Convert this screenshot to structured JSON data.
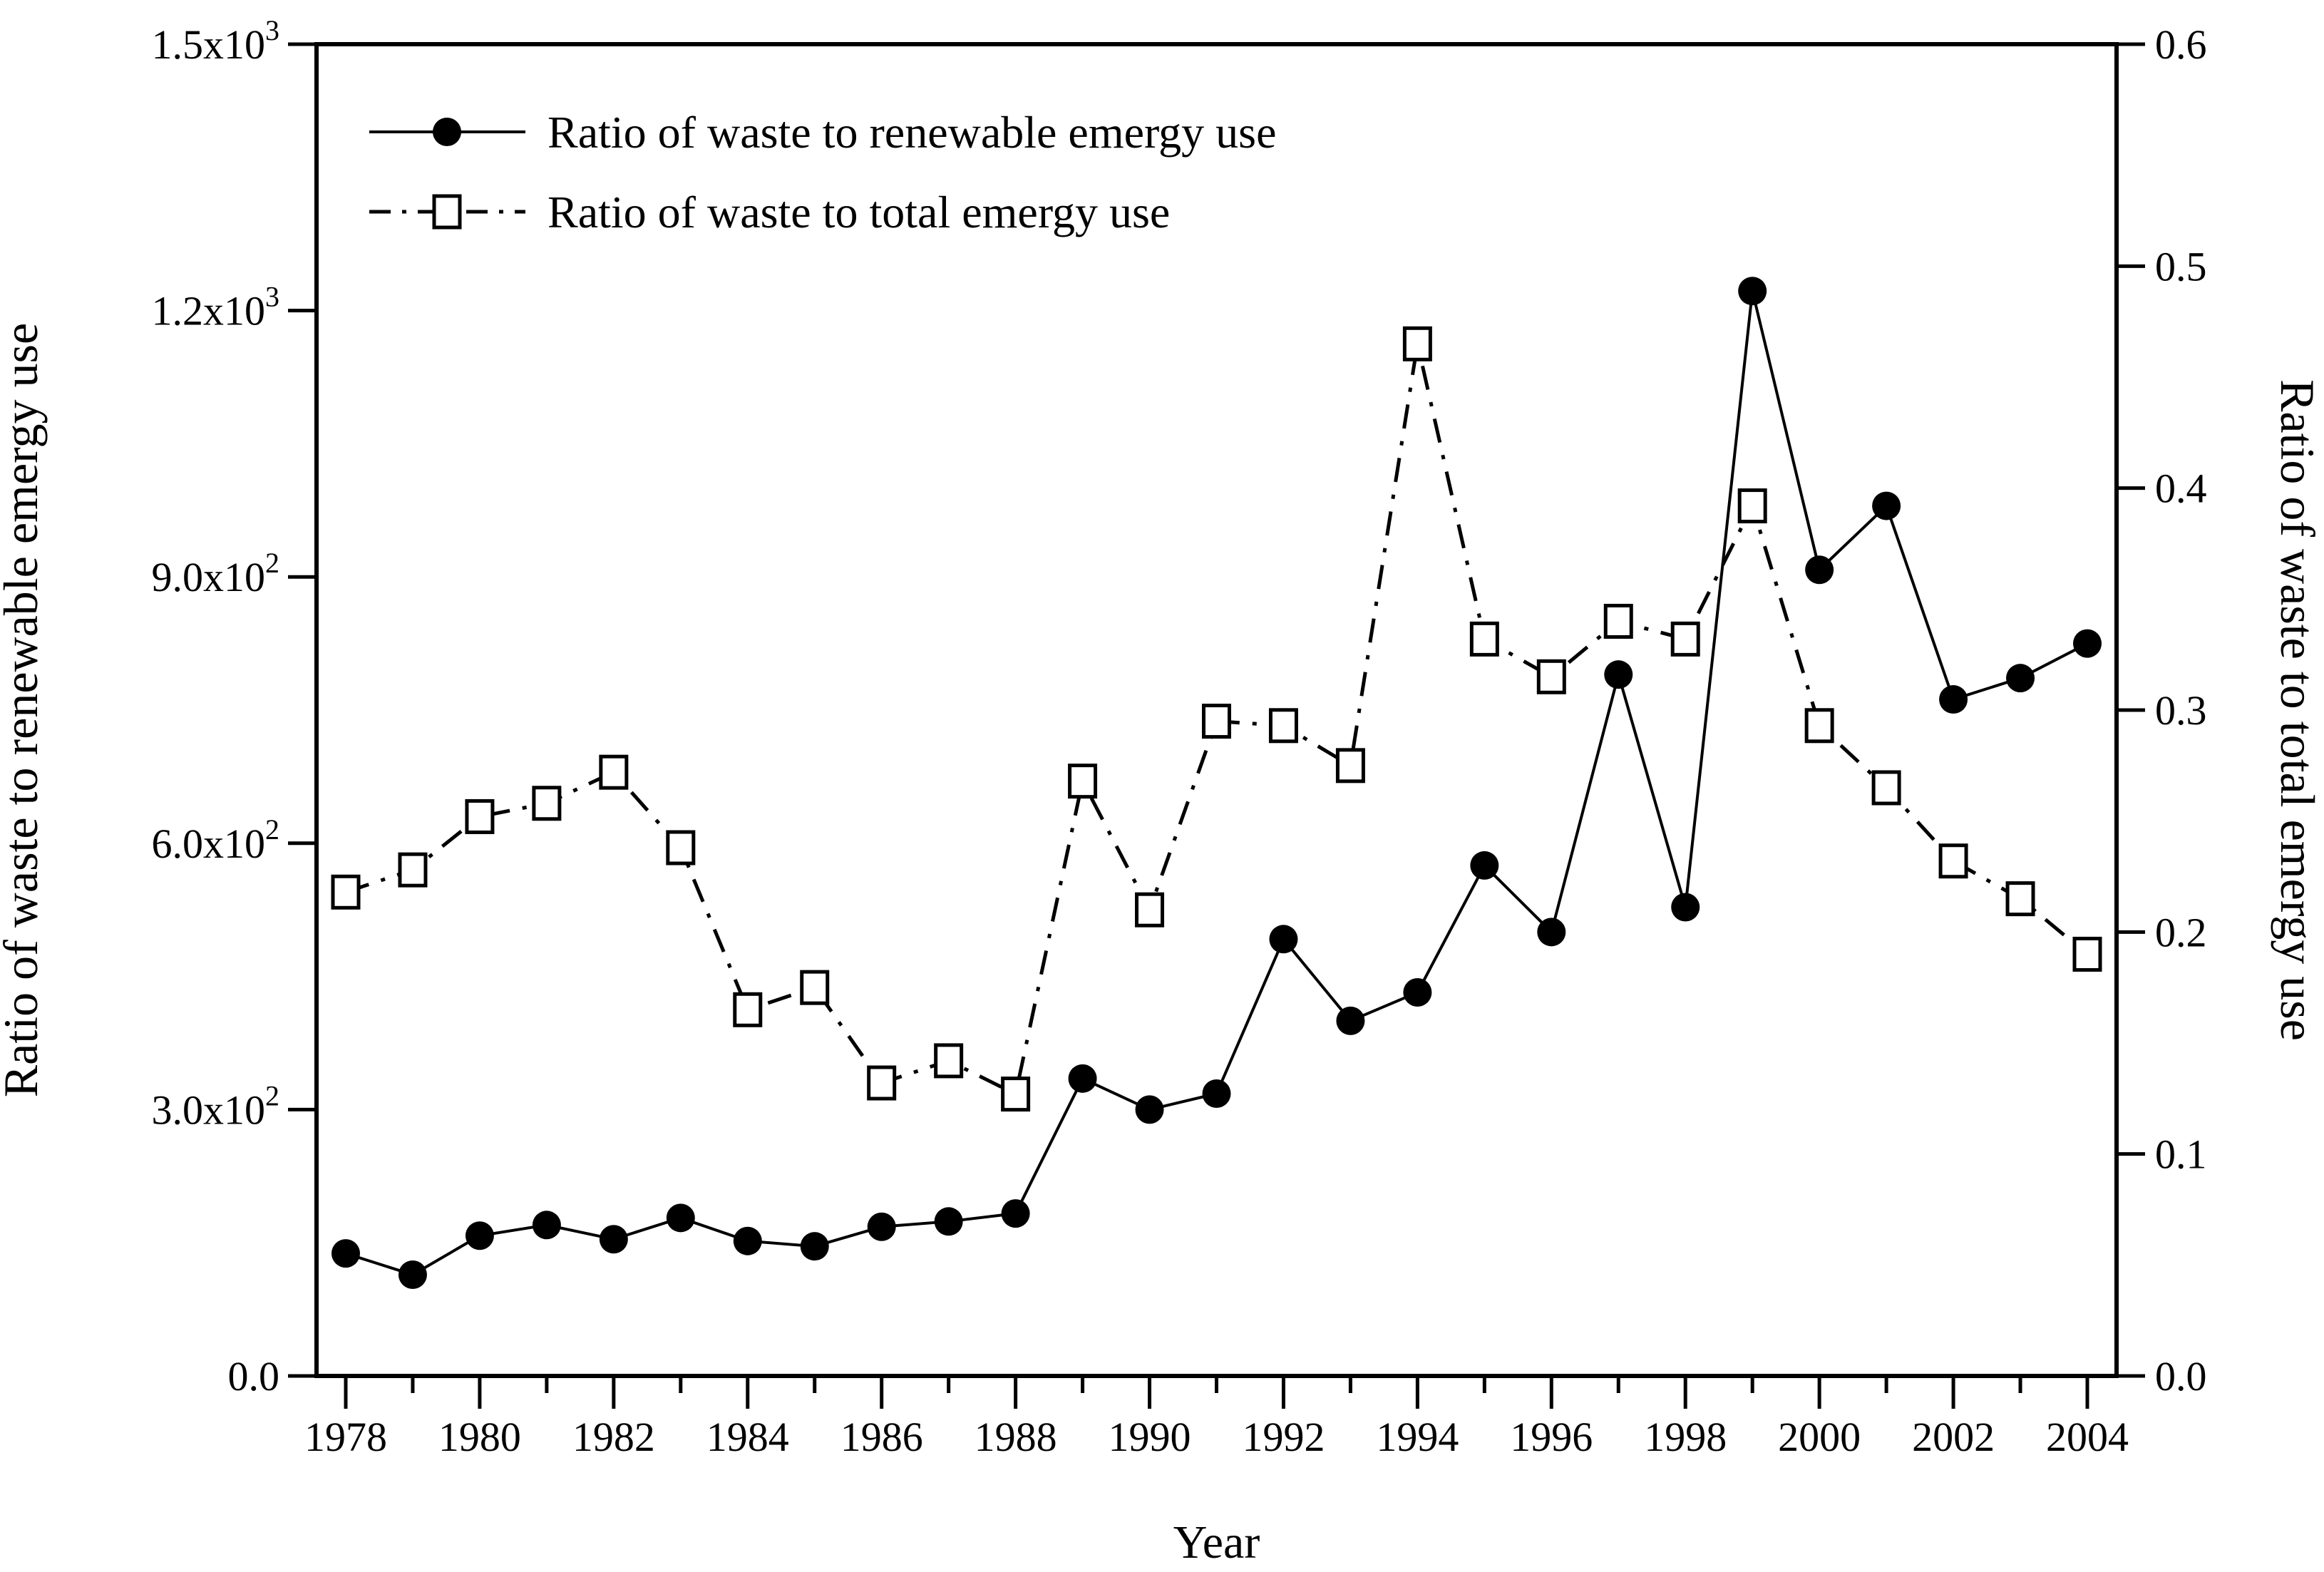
{
  "figure": {
    "background": "#ffffff",
    "ink_color": "#000000"
  },
  "chart_data": {
    "type": "line",
    "title": "",
    "xlabel": "Year",
    "x": [
      1978,
      1979,
      1980,
      1981,
      1982,
      1983,
      1984,
      1985,
      1986,
      1987,
      1988,
      1989,
      1990,
      1991,
      1992,
      1993,
      1994,
      1995,
      1996,
      1997,
      1998,
      1999,
      2000,
      2001,
      2002,
      2003,
      2004
    ],
    "x_major_ticks": [
      1978,
      1980,
      1982,
      1984,
      1986,
      1988,
      1990,
      1992,
      1994,
      1996,
      1998,
      2000,
      2002,
      2004
    ],
    "x_minor_ticks": [
      1979,
      1981,
      1983,
      1985,
      1987,
      1989,
      1991,
      1993,
      1995,
      1997,
      1999,
      2001,
      2003
    ],
    "grid": false,
    "series": [
      {
        "name": "Ratio of waste to renewable emergy use",
        "axis": "left",
        "marker": "filled-circle",
        "line_style": "solid",
        "color": "#000000",
        "values": [
          138,
          114,
          158,
          170,
          154,
          178,
          152,
          146,
          168,
          174,
          183,
          335,
          300,
          318,
          492,
          400,
          432,
          575,
          500,
          790,
          528,
          1222,
          908,
          980,
          762,
          786,
          825
        ]
      },
      {
        "name": "Ratio of waste to total emergy use",
        "axis": "right",
        "marker": "open-square",
        "line_style": "dash-dot",
        "color": "#000000",
        "values": [
          0.218,
          0.228,
          0.252,
          0.258,
          0.272,
          0.238,
          0.165,
          0.175,
          0.132,
          0.142,
          0.127,
          0.268,
          0.21,
          0.295,
          0.293,
          0.275,
          0.465,
          0.332,
          0.315,
          0.34,
          0.332,
          0.392,
          0.293,
          0.265,
          0.232,
          0.215,
          0.19
        ]
      }
    ],
    "axes": {
      "left": {
        "label": "Ratio of waste to renewable emergy use",
        "range": [
          0,
          1500
        ],
        "ticks": [
          {
            "value": 0,
            "label": "0.0"
          },
          {
            "value": 300,
            "label": "3.0x10^2"
          },
          {
            "value": 600,
            "label": "6.0x10^2"
          },
          {
            "value": 900,
            "label": "9.0x10^2"
          },
          {
            "value": 1200,
            "label": "1.2x10^3"
          },
          {
            "value": 1500,
            "label": "1.5x10^3"
          }
        ]
      },
      "right": {
        "label": "Ratio of waste to total emergy use",
        "range": [
          0,
          0.6
        ],
        "ticks": [
          {
            "value": 0.0,
            "label": "0.0"
          },
          {
            "value": 0.1,
            "label": "0.1"
          },
          {
            "value": 0.2,
            "label": "0.2"
          },
          {
            "value": 0.3,
            "label": "0.3"
          },
          {
            "value": 0.4,
            "label": "0.4"
          },
          {
            "value": 0.5,
            "label": "0.5"
          },
          {
            "value": 0.6,
            "label": "0.6"
          }
        ]
      }
    },
    "legend": {
      "position": "top-left-inside",
      "entries": [
        "Ratio of waste to renewable emergy use",
        "Ratio of waste to total emergy use"
      ]
    }
  }
}
